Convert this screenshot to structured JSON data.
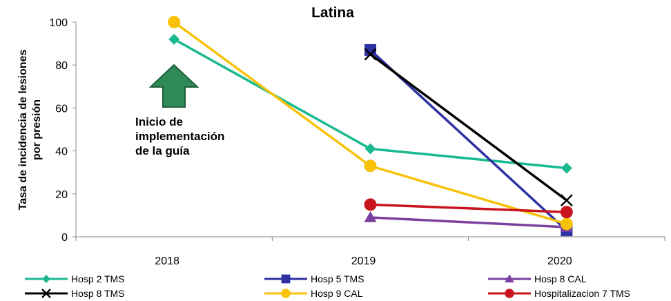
{
  "chart_data": {
    "type": "line",
    "title": "Latina",
    "xlabel": "",
    "ylabel": "Tasa de incidencia de lesiones por presión",
    "ylabel_lines": [
      "Tasa de incidencia de lesiones",
      "por presión"
    ],
    "categories": [
      "2018",
      "2019",
      "2020"
    ],
    "ylim": [
      0,
      100
    ],
    "yticks": [
      0,
      20,
      40,
      60,
      80,
      100
    ],
    "grid": false,
    "legend": "bottom",
    "series": [
      {
        "name": "Hosp 2 TMS",
        "color": "#1ab98f",
        "marker": "diamond",
        "values": [
          92,
          41,
          32
        ]
      },
      {
        "name": "Hosp 5 TMS",
        "color": "#2e31a3",
        "marker": "square",
        "values": [
          null,
          87,
          3
        ]
      },
      {
        "name": "Hosp 8 CAL",
        "color": "#7b3fa0",
        "marker": "triangle",
        "values": [
          null,
          9,
          4.5
        ]
      },
      {
        "name": "Hosp 8 TMS",
        "color": "#000000",
        "marker": "x",
        "values": [
          null,
          85,
          17
        ]
      },
      {
        "name": "Hosp 9 CAL",
        "color": "#f9c20a",
        "marker": "circle",
        "values": [
          100,
          33,
          6
        ]
      },
      {
        "name": "Hospitalizacion 7 TMS",
        "color": "#c8141c",
        "marker": "circle",
        "values": [
          null,
          15,
          11.5
        ]
      }
    ],
    "annotation": {
      "lines": [
        "Inicio de",
        "implementación",
        "de la guía"
      ],
      "arrow_color": "#2e8b57"
    }
  }
}
